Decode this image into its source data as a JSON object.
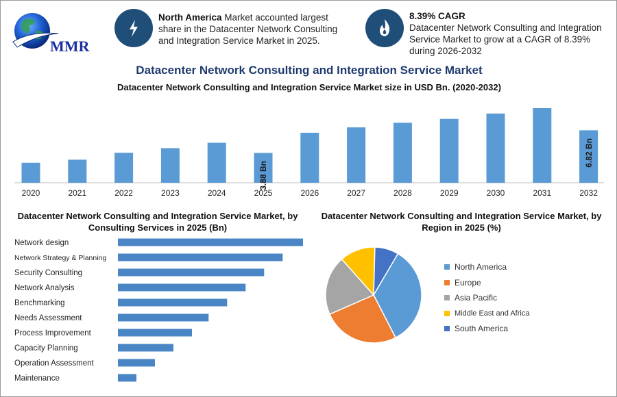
{
  "header": {
    "logo_text": "MMR",
    "stat1": {
      "icon": "lightning-icon",
      "bold": "North America",
      "text": " Market accounted largest share in the Datacenter Network Consulting and Integration Service Market in 2025."
    },
    "stat2": {
      "icon": "flame-icon",
      "bold": "8.39% CAGR",
      "text": "Datacenter Network Consulting and Integration Service Market to grow at a CAGR of 8.39% during 2026-2032"
    }
  },
  "title": "Datacenter Network Consulting and Integration Service Market",
  "subtitle": "Datacenter Network Consulting and Integration Service Market size in USD Bn. (2020-2032)",
  "colors": {
    "bar": "#5b9bd5",
    "hbar": "#4a86c5",
    "title": "#1f3a6e",
    "icon_bg": "#1f4e79",
    "pie": [
      "#5b9bd5",
      "#ed7d31",
      "#a5a5a5",
      "#ffc000",
      "#4472c4"
    ]
  },
  "chart_data": [
    {
      "type": "bar",
      "title": "Datacenter Network Consulting and Integration Service Market size in USD Bn. (2020-2032)",
      "categories": [
        "2020",
        "2021",
        "2022",
        "2023",
        "2024",
        "2025",
        "2026",
        "2027",
        "2028",
        "2029",
        "2030",
        "2031",
        "2032"
      ],
      "values": [
        2.6,
        3.0,
        3.9,
        4.5,
        5.2,
        3.88,
        6.5,
        7.2,
        7.8,
        8.3,
        9.0,
        9.7,
        6.82
      ],
      "data_labels": {
        "5": "3.88 Bn",
        "12": "6.82 Bn"
      },
      "xlabel": "",
      "ylabel": "",
      "ylim": [
        0,
        10.5
      ]
    },
    {
      "type": "bar",
      "orientation": "horizontal",
      "title": "Datacenter Network Consulting and Integration Service Market, by Consulting Services in 2025 (Bn)",
      "categories": [
        "Network design",
        "Network Strategy & Planning",
        "Security Consulting",
        "Network Analysis",
        "Benchmarking",
        "Needs Assessment",
        "Process Improvement",
        "Capacity Planning",
        "Operation Assessment",
        "Maintenance"
      ],
      "values": [
        10,
        8.9,
        7.9,
        6.9,
        5.9,
        4.9,
        4.0,
        3.0,
        2.0,
        1.0
      ],
      "xlim": [
        0,
        10
      ]
    },
    {
      "type": "pie",
      "title": "Datacenter Network Consulting and Integration Service Market, by Region in 2025 (%)",
      "categories": [
        "North America",
        "Europe",
        "Asia Pacific",
        "Middle East and Africa",
        "South America"
      ],
      "values": [
        34,
        26,
        20,
        12,
        8
      ],
      "legend": "right"
    }
  ]
}
